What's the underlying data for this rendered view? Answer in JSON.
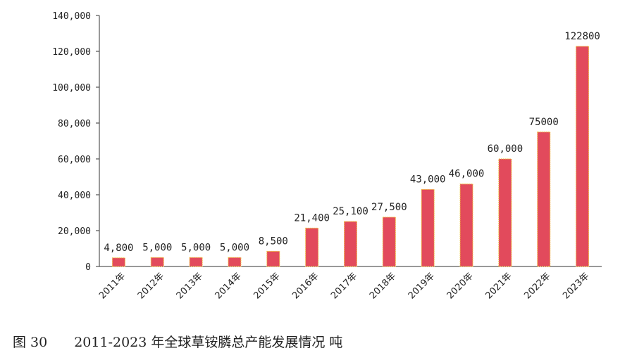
{
  "caption": {
    "figure_number": "图 30",
    "title": "2011-2023 年全球草铵膦总产能发展情况 吨"
  },
  "chart_data": {
    "type": "bar",
    "title": "",
    "xlabel": "",
    "ylabel": "",
    "categories": [
      "2011年",
      "2012年",
      "2013年",
      "2014年",
      "2015年",
      "2016年",
      "2017年",
      "2018年",
      "2019年",
      "2020年",
      "2021年",
      "2022年",
      "2023年"
    ],
    "values": [
      4800,
      5000,
      5000,
      5000,
      8500,
      21400,
      25100,
      27500,
      43000,
      46000,
      60000,
      75000,
      122800
    ],
    "data_labels": [
      "4,800",
      "5,000",
      "5,000",
      "5,000",
      "8,500",
      "21,400",
      "25,100",
      "27,500",
      "43,000",
      "46,000",
      "60,000",
      "75000",
      "122800"
    ],
    "ylim": [
      0,
      140000
    ],
    "yticks": [
      0,
      20000,
      40000,
      60000,
      80000,
      100000,
      120000,
      140000
    ],
    "ytick_labels": [
      "0",
      "20,000",
      "40,000",
      "60,000",
      "80,000",
      "100,000",
      "120,000",
      "140,000"
    ],
    "grid": false,
    "legend": "none",
    "colors": {
      "bar_fill": "#e24a5c",
      "bar_border": "#f0c040",
      "axis": "#333333",
      "text": "#222222"
    }
  }
}
